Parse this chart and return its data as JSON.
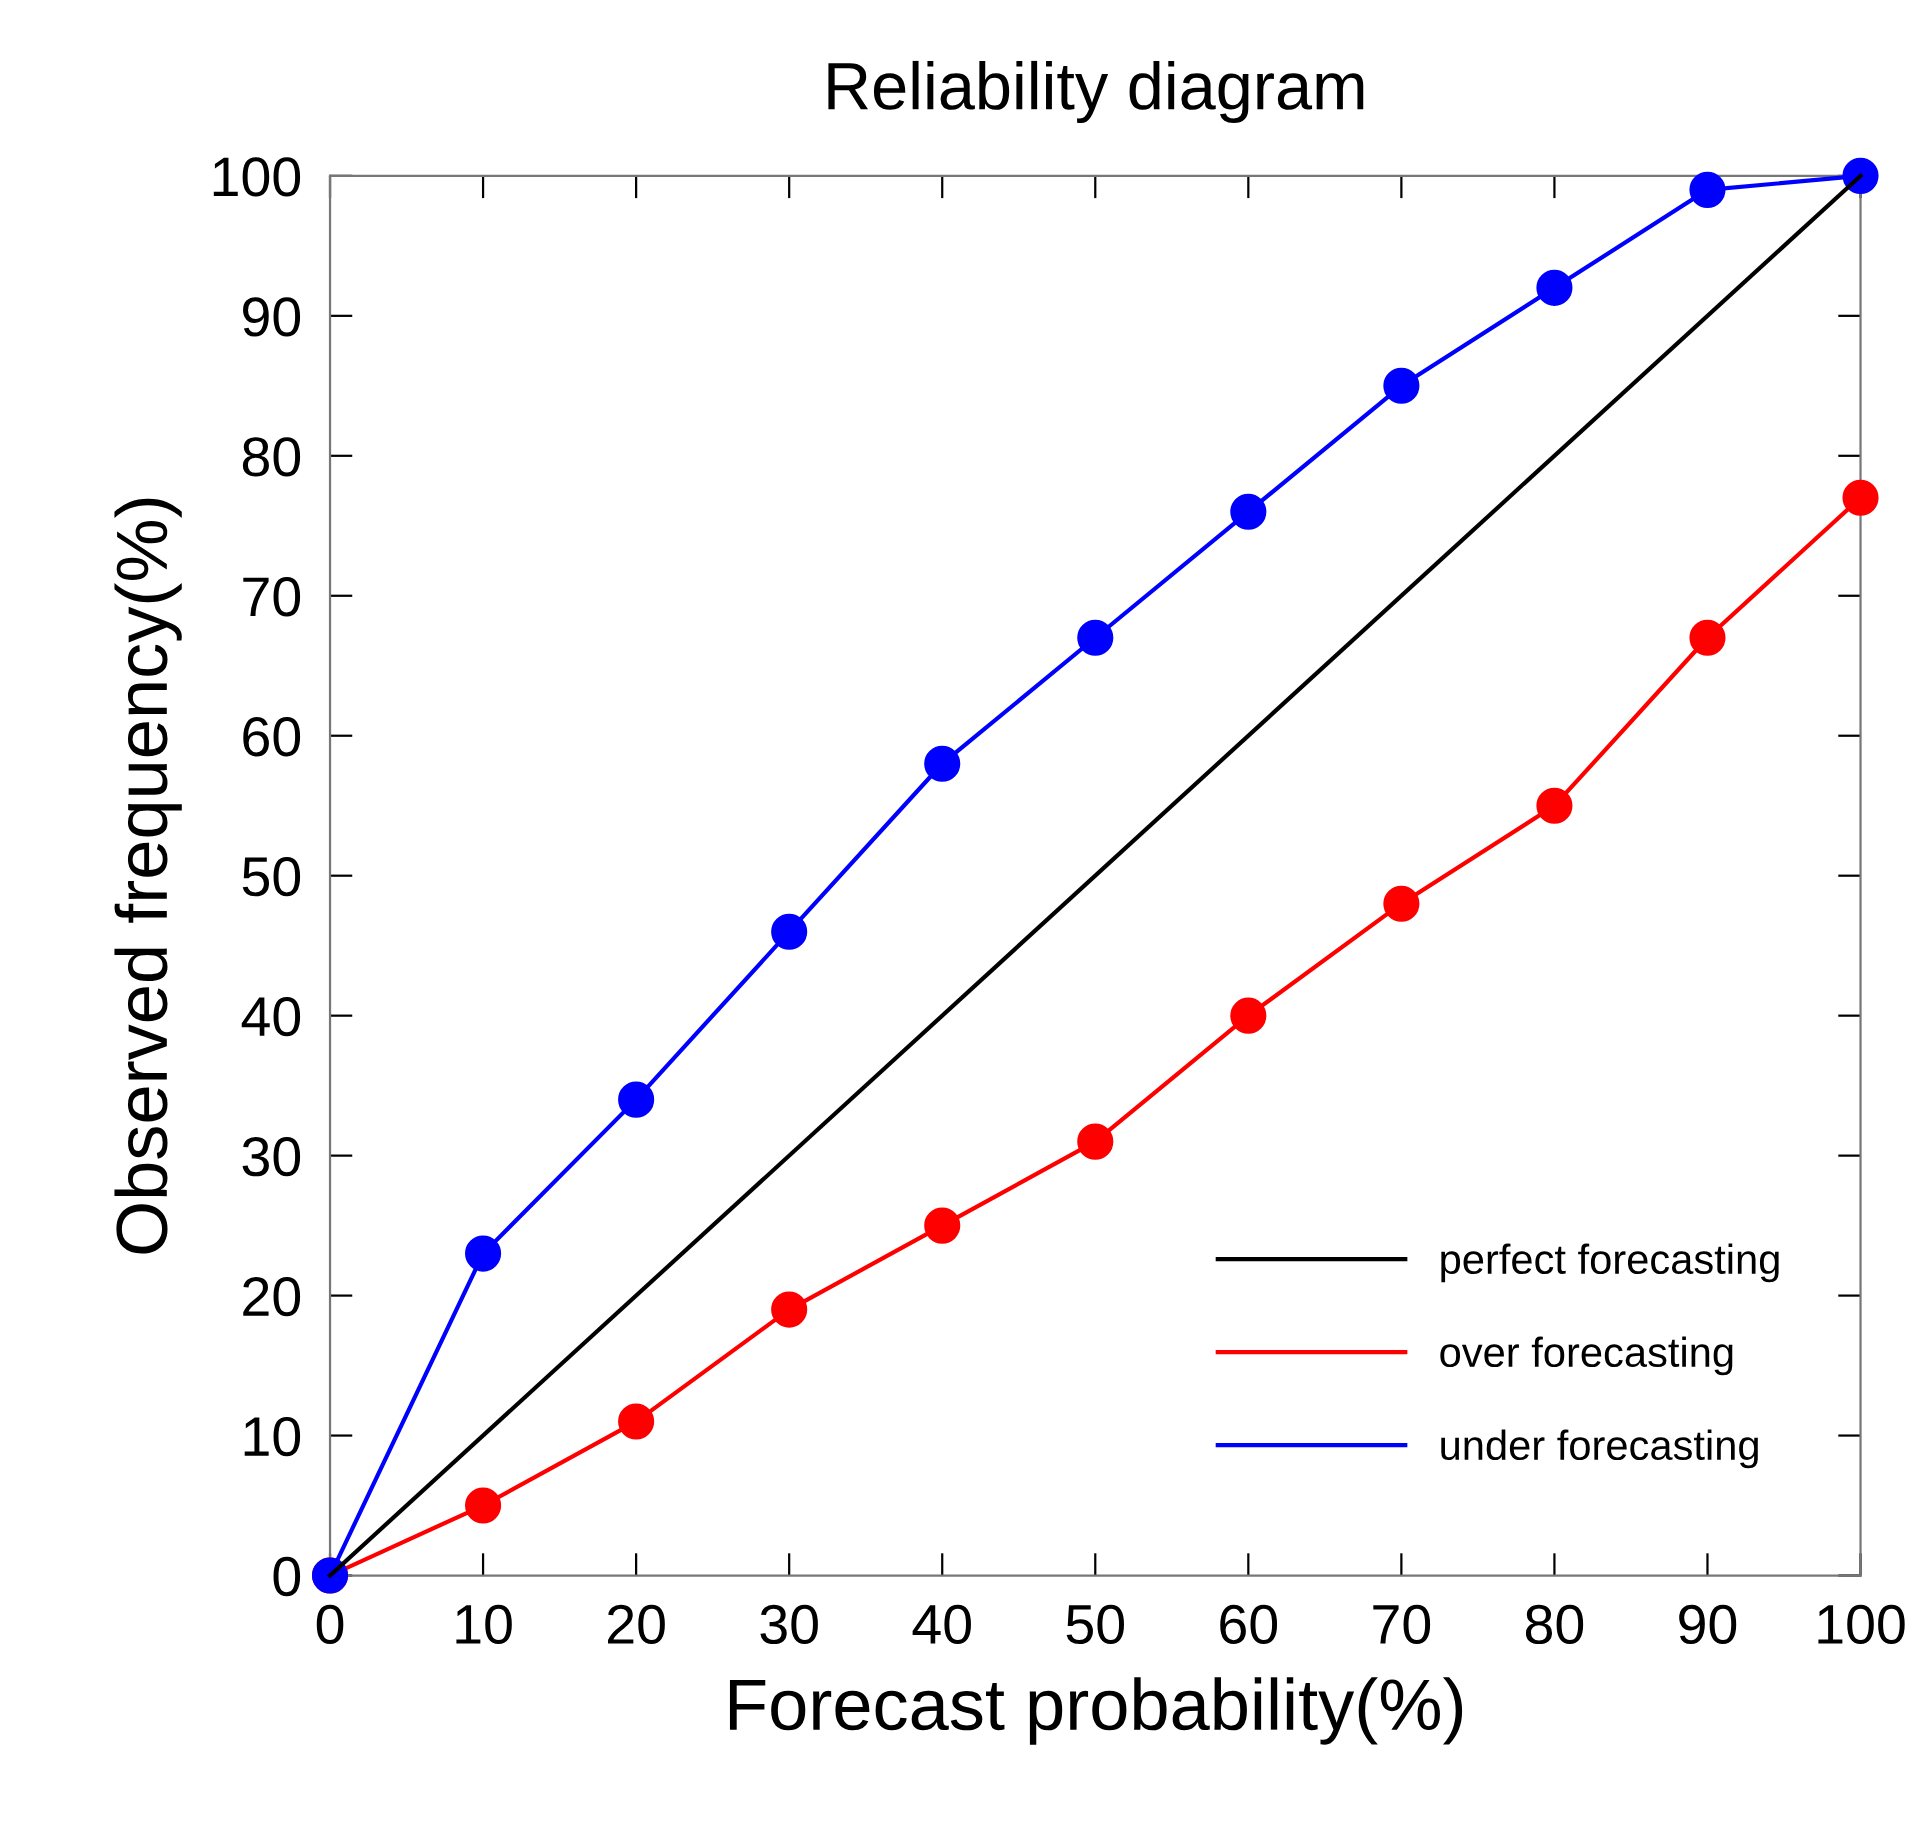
{
  "chart_data": {
    "type": "line",
    "title": "Reliability diagram",
    "xlabel": "Forecast probability(%)",
    "ylabel": "Observed frequency(%)",
    "x": [
      0,
      10,
      20,
      30,
      40,
      50,
      60,
      70,
      80,
      90,
      100
    ],
    "series": [
      {
        "name": "perfect forecasting",
        "color": "#000000",
        "x": [
          0,
          100
        ],
        "values": [
          0,
          100
        ],
        "marker": "none"
      },
      {
        "name": "over forecasting",
        "color": "#ff0000",
        "values": [
          0,
          5,
          11,
          19,
          25,
          31,
          40,
          48,
          55,
          67,
          77
        ],
        "marker": "circle"
      },
      {
        "name": "under forecasting",
        "color": "#0000ff",
        "values": [
          0,
          23,
          34,
          46,
          58,
          67,
          76,
          85,
          92,
          99,
          100
        ],
        "marker": "circle"
      }
    ],
    "xlim": [
      0,
      100
    ],
    "ylim": [
      0,
      100
    ],
    "xticks": [
      0,
      10,
      20,
      30,
      40,
      50,
      60,
      70,
      80,
      90,
      100
    ],
    "yticks": [
      0,
      10,
      20,
      30,
      40,
      50,
      60,
      70,
      80,
      90,
      100
    ],
    "grid": false,
    "legend": "bottom right",
    "line_style": "solid"
  }
}
